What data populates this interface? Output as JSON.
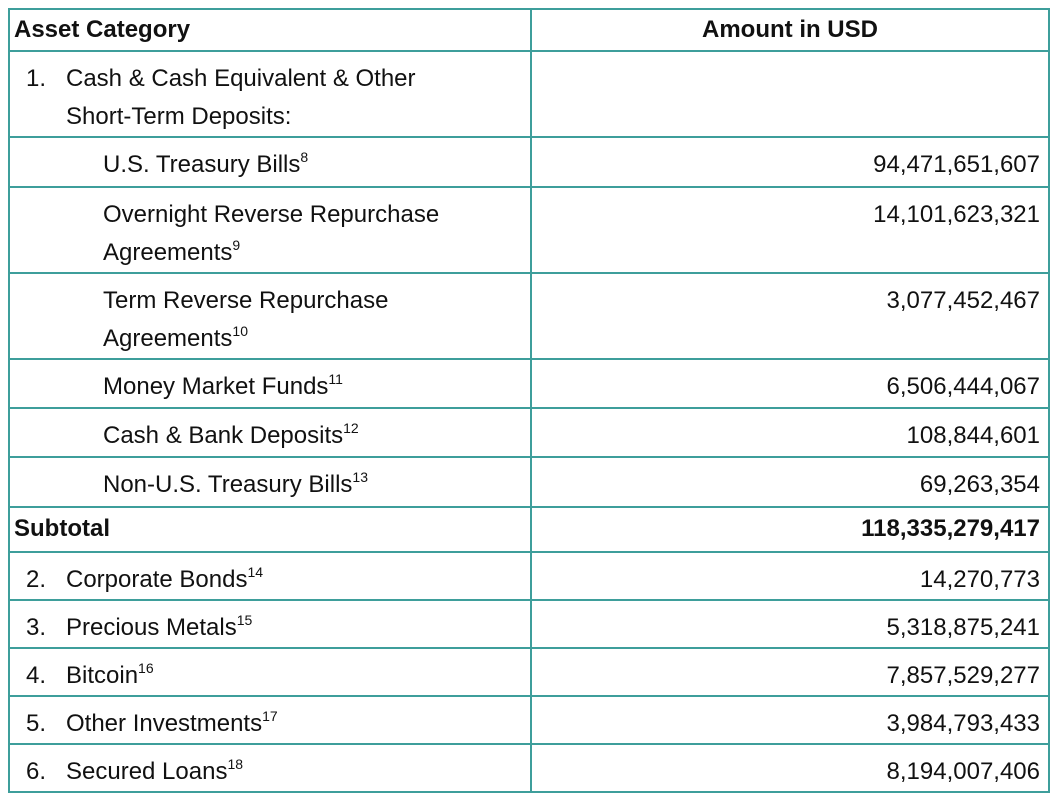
{
  "table": {
    "header": [
      "Asset Category",
      "Amount in USD"
    ],
    "rows": [
      {
        "number": "1.",
        "label": "Cash & Cash Equivalent & Other Short-Term Deposits:"
      },
      {
        "label": "U.S. Treasury Bills",
        "note": "8",
        "amount": "94,471,651,607"
      },
      {
        "label": "Overnight Reverse Repurchase Agreements",
        "note": "9",
        "amount": "14,101,623,321"
      },
      {
        "label": "Term Reverse Repurchase Agreements",
        "note": "10",
        "amount": "3,077,452,467"
      },
      {
        "label": "Money Market Funds",
        "note": "11",
        "amount": "6,506,444,067"
      },
      {
        "label": "Cash & Bank Deposits",
        "note": "12",
        "amount": "108,844,601"
      },
      {
        "label": "Non-U.S. Treasury Bills",
        "note": "13",
        "amount": "69,263,354"
      },
      {
        "label": "Subtotal",
        "amount": "118,335,279,417",
        "bold": true
      },
      {
        "number": "2.",
        "label": "Corporate Bonds",
        "note": "14",
        "amount": "14,270,773"
      },
      {
        "number": "3.",
        "label": "Precious Metals",
        "note": "15",
        "amount": "5,318,875,241"
      },
      {
        "number": "4.",
        "label": "Bitcoin",
        "note": "16",
        "amount": "7,857,529,277"
      },
      {
        "number": "5.",
        "label": "Other Investments",
        "note": "17",
        "amount": "3,984,793,433"
      },
      {
        "number": "6.",
        "label": "Secured Loans",
        "note": "18",
        "amount": "8,194,007,406"
      }
    ]
  }
}
